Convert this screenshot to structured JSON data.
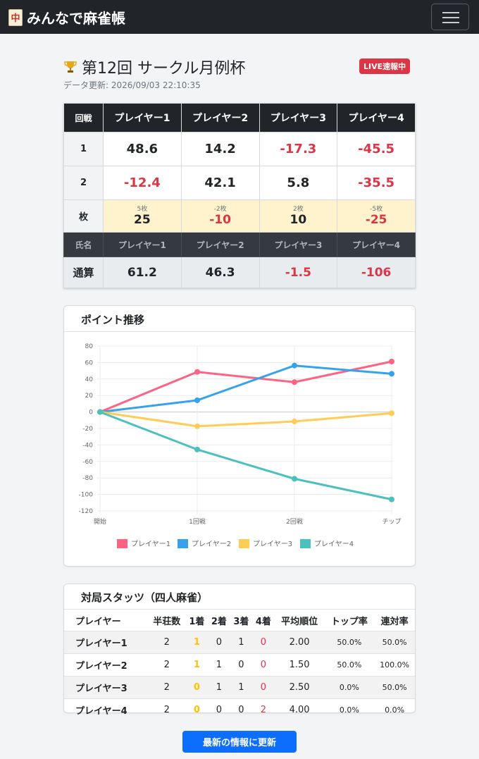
{
  "app": {
    "title": "みんなで麻雀帳",
    "logo_glyph": "中"
  },
  "event": {
    "title": "第12回 サークル月例杯",
    "live_badge": "LIVE速報中",
    "updated": "データ更新: 2026/09/03 22:10:35"
  },
  "score_table": {
    "corner": "回戦",
    "players": [
      "プレイヤー1",
      "プレイヤー2",
      "プレイヤー3",
      "プレイヤー4"
    ],
    "rounds": [
      {
        "label": "1",
        "values": [
          "48.6",
          "14.2",
          "-17.3",
          "-45.5"
        ]
      },
      {
        "label": "2",
        "values": [
          "-12.4",
          "42.1",
          "5.8",
          "-35.5"
        ]
      }
    ],
    "chips": {
      "label": "枚",
      "counts": [
        "5枚",
        "-2枚",
        "2枚",
        "-5枚"
      ],
      "points": [
        "25",
        "-10",
        "10",
        "-25"
      ]
    },
    "name_row_label": "氏名",
    "total": {
      "label": "通算",
      "values": [
        "61.2",
        "46.3",
        "-1.5",
        "-106"
      ]
    }
  },
  "chart_card": {
    "title": "ポイント推移"
  },
  "chart_data": {
    "type": "line",
    "x": [
      "開始",
      "1回戦",
      "2回戦",
      "チップ"
    ],
    "ylim": [
      -120,
      80
    ],
    "yticks": [
      80,
      60,
      40,
      20,
      0,
      -20,
      -40,
      -60,
      -80,
      -100,
      -120
    ],
    "grid": true,
    "legend": "bottom",
    "series": [
      {
        "name": "プレイヤー1",
        "color": "#ff6384",
        "values": [
          0,
          48.6,
          36.2,
          61.2
        ]
      },
      {
        "name": "プレイヤー2",
        "color": "#36a2eb",
        "values": [
          0,
          14.2,
          56.3,
          46.3
        ]
      },
      {
        "name": "プレイヤー3",
        "color": "#ffcd56",
        "values": [
          0,
          -17.3,
          -11.5,
          -1.5
        ]
      },
      {
        "name": "プレイヤー4",
        "color": "#4bc0c0",
        "values": [
          0,
          -45.5,
          -81.0,
          -106.0
        ]
      }
    ]
  },
  "stats": {
    "title": "対局スタッツ（四人麻雀）",
    "headers": [
      "プレイヤー",
      "半荘数",
      "1着",
      "2着",
      "3着",
      "4着",
      "平均順位",
      "トップ率",
      "連対率"
    ],
    "rows": [
      [
        "プレイヤー1",
        "2",
        "1",
        "0",
        "1",
        "0",
        "2.00",
        "50.0%",
        "50.0%"
      ],
      [
        "プレイヤー2",
        "2",
        "1",
        "1",
        "0",
        "0",
        "1.50",
        "50.0%",
        "100.0%"
      ],
      [
        "プレイヤー3",
        "2",
        "0",
        "1",
        "1",
        "0",
        "2.50",
        "0.0%",
        "50.0%"
      ],
      [
        "プレイヤー4",
        "2",
        "0",
        "0",
        "0",
        "2",
        "4.00",
        "0.0%",
        "0.0%"
      ]
    ]
  },
  "refresh_button": "最新の情報に更新"
}
